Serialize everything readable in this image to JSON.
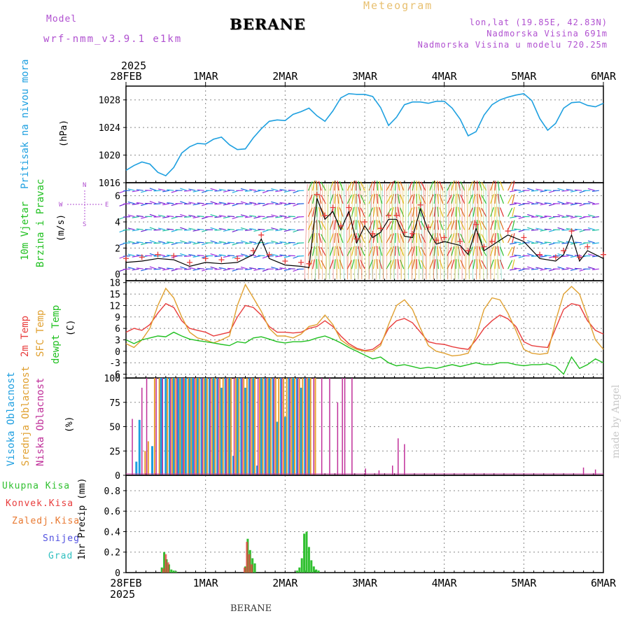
{
  "header": {
    "model_label": "Model",
    "model_name": "wrf-nmm_v3.9.1 e1km",
    "station": "BERANE",
    "product": "Meteogram",
    "coords": "lon,lat (19.85E, 42.83N)",
    "elevation": "Nadmorska Visina 691m",
    "model_elevation": "Nadmorska Visina u modelu 720.25m",
    "footer_station": "BERANE",
    "watermark": "made by Angel"
  },
  "colors": {
    "pressure": "#1ea0e0",
    "temp2m": "#e83c3c",
    "sfc_temp": "#e0a030",
    "dewpt": "#20c020",
    "high_cloud": "#1e9fe0",
    "mid_cloud": "#e8a030",
    "low_cloud": "#c0309a",
    "total_precip": "#30c030",
    "conv_precip": "#e83c3c",
    "frozen_precip": "#e87830",
    "snow": "#5050e0",
    "hail": "#30c0c0",
    "model_text": "#b050d0",
    "meteogram_text": "#e8c070",
    "wind_speed_line": "#000000",
    "gust_marks": "#e83c3c"
  },
  "time_axis": {
    "top_year": "2025",
    "bottom_year": "2025",
    "ticks": [
      "28FEB",
      "1MAR",
      "2MAR",
      "3MAR",
      "4MAR",
      "5MAR",
      "6MAR"
    ]
  },
  "panels": {
    "pressure": {
      "title": "Pritisak na nivou mora",
      "unit": "(hPa)",
      "yticks": [
        "1016",
        "1020",
        "1024",
        "1028"
      ]
    },
    "wind": {
      "title": "10m Vjetar",
      "subtitle": "Brzina i Pravac",
      "unit": "(m/s)",
      "compass_w": "W",
      "compass_e": "E",
      "compass_n": "N",
      "compass_s": "S",
      "yticks": [
        "0",
        "2",
        "4",
        "6"
      ]
    },
    "temp": {
      "label_2m": "2m Temp",
      "label_sfc": "SFC Temp",
      "label_dewpt": "dewpt Temp",
      "unit": "(C)",
      "yticks": [
        "-6",
        "-3",
        "0",
        "3",
        "6",
        "9",
        "12",
        "15",
        "18"
      ]
    },
    "cloud": {
      "label_high": "Visoka Oblacnost",
      "label_mid": "Srednja Oblacnost",
      "label_low": "Niska Oblacnost",
      "unit": "(%)",
      "yticks": [
        "0",
        "25",
        "50",
        "75",
        "100"
      ]
    },
    "precip": {
      "legend": [
        "Ukupna Kisa",
        "Konvek.Kisa",
        "Zaledj.Kisa",
        "Snijeg",
        "Grad"
      ],
      "unit": "1hr Precip (mm)",
      "yticks": [
        "0",
        "0.2",
        "0.4",
        "0.6",
        "0.8"
      ]
    }
  },
  "chart_data": [
    {
      "type": "line",
      "name": "pressure",
      "title": "Pritisak na nivou mora",
      "ylabel": "(hPa)",
      "ylim": [
        1016,
        1030
      ],
      "xlim": [
        0,
        6
      ],
      "x": [
        0,
        0.1,
        0.2,
        0.3,
        0.4,
        0.5,
        0.6,
        0.7,
        0.8,
        0.9,
        1.0,
        1.1,
        1.2,
        1.3,
        1.4,
        1.5,
        1.6,
        1.7,
        1.8,
        1.9,
        2.0,
        2.1,
        2.2,
        2.3,
        2.4,
        2.5,
        2.6,
        2.7,
        2.8,
        2.9,
        3.0,
        3.1,
        3.2,
        3.3,
        3.4,
        3.5,
        3.6,
        3.7,
        3.8,
        3.9,
        4.0,
        4.1,
        4.2,
        4.3,
        4.4,
        4.5,
        4.6,
        4.7,
        4.8,
        4.9,
        5.0,
        5.1,
        5.2,
        5.3,
        5.4,
        5.5,
        5.6,
        5.7,
        5.8,
        5.9,
        6.0
      ],
      "y": [
        1017.8,
        1018.5,
        1019.0,
        1018.7,
        1017.5,
        1017.0,
        1018.2,
        1020.3,
        1021.2,
        1021.7,
        1021.6,
        1022.3,
        1022.6,
        1021.5,
        1020.8,
        1020.9,
        1022.5,
        1023.8,
        1024.9,
        1025.1,
        1025.0,
        1025.9,
        1026.3,
        1026.8,
        1025.7,
        1024.9,
        1026.4,
        1028.3,
        1028.9,
        1028.8,
        1028.8,
        1028.5,
        1026.9,
        1024.3,
        1025.5,
        1027.3,
        1027.7,
        1027.7,
        1027.5,
        1027.8,
        1027.8,
        1026.8,
        1025.2,
        1022.8,
        1023.4,
        1025.8,
        1027.3,
        1028.0,
        1028.4,
        1028.7,
        1028.9,
        1027.9,
        1025.3,
        1023.6,
        1024.6,
        1026.8,
        1027.6,
        1027.7,
        1027.2,
        1027.0,
        1027.5
      ]
    },
    {
      "type": "line",
      "name": "wind_speed",
      "title": "10m Vjetar Brzina i Pravac",
      "ylabel": "(m/s)",
      "ylim": [
        -0.5,
        7.0
      ],
      "xlim": [
        0,
        6
      ],
      "series": [
        {
          "name": "speed",
          "x": [
            0,
            0.2,
            0.4,
            0.6,
            0.8,
            1.0,
            1.2,
            1.4,
            1.6,
            1.7,
            1.8,
            2.0,
            2.2,
            2.3,
            2.4,
            2.5,
            2.6,
            2.7,
            2.8,
            2.9,
            3.0,
            3.1,
            3.2,
            3.3,
            3.4,
            3.5,
            3.6,
            3.7,
            3.8,
            3.9,
            4.0,
            4.2,
            4.3,
            4.4,
            4.5,
            4.6,
            4.8,
            5.0,
            5.2,
            5.4,
            5.5,
            5.6,
            5.7,
            5.8,
            6.0
          ],
          "y": [
            0.9,
            1.0,
            1.2,
            1.1,
            0.6,
            0.9,
            0.8,
            0.9,
            1.5,
            2.7,
            1.2,
            0.7,
            0.6,
            0.5,
            5.8,
            4.2,
            4.8,
            3.4,
            4.8,
            2.4,
            3.7,
            2.8,
            3.2,
            4.2,
            4.2,
            2.9,
            2.8,
            5.0,
            3.3,
            2.3,
            2.5,
            2.2,
            1.5,
            3.5,
            1.8,
            2.2,
            3.0,
            2.5,
            1.2,
            1.0,
            1.5,
            3.0,
            1.0,
            1.8,
            1.2
          ]
        }
      ]
    },
    {
      "type": "line",
      "name": "temperature",
      "ylabel": "(C)",
      "ylim": [
        -7,
        18.5
      ],
      "xlim": [
        0,
        6
      ],
      "series": [
        {
          "name": "2m Temp",
          "x": [
            0,
            0.1,
            0.2,
            0.3,
            0.4,
            0.5,
            0.6,
            0.7,
            0.8,
            0.9,
            1.0,
            1.1,
            1.2,
            1.3,
            1.4,
            1.5,
            1.6,
            1.7,
            1.8,
            1.9,
            2.0,
            2.1,
            2.2,
            2.3,
            2.4,
            2.5,
            2.6,
            2.7,
            2.8,
            2.9,
            3.0,
            3.1,
            3.2,
            3.3,
            3.4,
            3.5,
            3.6,
            3.7,
            3.8,
            3.9,
            4.0,
            4.1,
            4.2,
            4.3,
            4.4,
            4.5,
            4.6,
            4.7,
            4.8,
            4.9,
            5.0,
            5.1,
            5.2,
            5.3,
            5.4,
            5.5,
            5.6,
            5.7,
            5.8,
            5.9,
            6.0
          ],
          "y": [
            5,
            6,
            5.5,
            7,
            10,
            12.5,
            11.5,
            8,
            6,
            5.5,
            5,
            4,
            4.5,
            5,
            9,
            12,
            11.5,
            9.5,
            6.5,
            5,
            5,
            4.8,
            5,
            6,
            6.5,
            8,
            6.5,
            4,
            2,
            0.8,
            0.2,
            0.5,
            2,
            6,
            8,
            8.6,
            7.5,
            5,
            2.5,
            2,
            1.8,
            1.2,
            0.8,
            0.5,
            3,
            6,
            8,
            9.5,
            8.5,
            6.5,
            2.5,
            1.5,
            1.2,
            1,
            6,
            11,
            12.5,
            12,
            8,
            5.5,
            4.5
          ]
        },
        {
          "name": "SFC Temp",
          "x": [
            0,
            0.1,
            0.2,
            0.3,
            0.4,
            0.5,
            0.6,
            0.7,
            0.8,
            0.9,
            1.0,
            1.1,
            1.2,
            1.3,
            1.4,
            1.5,
            1.6,
            1.7,
            1.8,
            1.9,
            2.0,
            2.1,
            2.2,
            2.3,
            2.4,
            2.5,
            2.6,
            2.7,
            2.8,
            2.9,
            3.0,
            3.1,
            3.2,
            3.3,
            3.4,
            3.5,
            3.6,
            3.7,
            3.8,
            3.9,
            4.0,
            4.1,
            4.2,
            4.3,
            4.4,
            4.5,
            4.6,
            4.7,
            4.8,
            4.9,
            5.0,
            5.1,
            5.2,
            5.3,
            5.4,
            5.5,
            5.6,
            5.7,
            5.8,
            5.9,
            6.0
          ],
          "y": [
            2,
            1,
            3,
            6,
            12,
            16.5,
            14,
            9,
            5,
            3.5,
            3,
            2.2,
            3,
            4,
            12,
            17.5,
            14,
            10.5,
            6,
            4,
            4,
            3.5,
            4.5,
            6.5,
            7,
            9.5,
            7,
            3,
            1.5,
            0.5,
            0,
            0,
            1.5,
            7,
            12,
            13.5,
            11,
            6,
            1.5,
            0,
            -0.5,
            -1.2,
            -1,
            -0.5,
            4,
            11,
            14,
            13.5,
            10,
            5.5,
            0.5,
            -0.5,
            -0.8,
            -0.5,
            8,
            15,
            17,
            15,
            9,
            3,
            0.5
          ]
        },
        {
          "name": "dewpt Temp",
          "x": [
            0,
            0.1,
            0.2,
            0.3,
            0.4,
            0.5,
            0.6,
            0.7,
            0.8,
            0.9,
            1.0,
            1.1,
            1.2,
            1.3,
            1.4,
            1.5,
            1.6,
            1.7,
            1.8,
            1.9,
            2.0,
            2.1,
            2.2,
            2.3,
            2.4,
            2.5,
            2.6,
            2.7,
            2.8,
            2.9,
            3.0,
            3.1,
            3.2,
            3.3,
            3.4,
            3.5,
            3.6,
            3.7,
            3.8,
            3.9,
            4.0,
            4.1,
            4.2,
            4.3,
            4.4,
            4.5,
            4.6,
            4.7,
            4.8,
            4.9,
            5.0,
            5.1,
            5.2,
            5.3,
            5.4,
            5.5,
            5.6,
            5.7,
            5.8,
            5.9,
            6.0
          ],
          "y": [
            3,
            2,
            3,
            3.5,
            4,
            3.8,
            5,
            4,
            3.2,
            2.8,
            2.5,
            2.2,
            1.8,
            1.5,
            2.5,
            2.2,
            3.5,
            3.8,
            3.2,
            2.5,
            2.2,
            2.5,
            2.5,
            2.8,
            3.5,
            4,
            3.2,
            2.2,
            1,
            0,
            -1,
            -2,
            -1.5,
            -3,
            -3.8,
            -3.5,
            -4,
            -4.5,
            -4.2,
            -4.5,
            -4,
            -3.5,
            -4,
            -3.5,
            -3,
            -3.5,
            -3.5,
            -3,
            -3,
            -3.5,
            -3.8,
            -3.5,
            -3.5,
            -3.3,
            -4,
            -6,
            -1.5,
            -4.5,
            -3.5,
            -2,
            -3
          ]
        }
      ]
    },
    {
      "type": "bar",
      "name": "cloud_cover",
      "ylabel": "(%)",
      "ylim": [
        0,
        100
      ],
      "xlim": [
        0,
        6
      ],
      "series": [
        {
          "name": "Visoka Oblacnost",
          "x": [
            0.13,
            0.17,
            0.33,
            0.44,
            0.5,
            0.55,
            0.6,
            0.66,
            0.7,
            0.75,
            0.8,
            0.84,
            0.9,
            0.95,
            1.0,
            1.05,
            1.1,
            1.15,
            1.2,
            1.25,
            1.3,
            1.35,
            1.4,
            1.45,
            1.5,
            1.55,
            1.6,
            1.65,
            1.7,
            1.75,
            1.8,
            1.85,
            1.9,
            1.95,
            2.0,
            2.05,
            2.1,
            2.15,
            2.2,
            2.25,
            2.3
          ],
          "values": [
            14,
            57,
            30,
            100,
            100,
            100,
            100,
            100,
            100,
            100,
            100,
            100,
            100,
            100,
            100,
            100,
            100,
            100,
            90,
            100,
            100,
            20,
            100,
            100,
            90,
            100,
            100,
            10,
            100,
            100,
            100,
            100,
            55,
            100,
            60,
            100,
            100,
            100,
            90,
            100,
            100
          ]
        },
        {
          "name": "Srednja Oblacnost",
          "x": [
            0.24,
            0.28,
            0.36,
            0.42,
            0.52,
            0.58,
            0.62,
            0.68,
            0.73,
            0.78,
            0.82,
            0.88,
            0.92,
            0.98,
            1.02,
            1.08,
            1.12,
            1.18,
            1.22,
            1.28,
            1.32,
            1.38,
            1.42,
            1.48,
            1.52,
            1.58,
            1.62,
            1.68,
            1.72,
            1.78,
            1.82,
            1.88,
            1.92,
            1.98,
            2.02,
            2.08,
            2.12,
            2.18,
            2.22,
            2.28,
            2.32,
            2.38
          ],
          "values": [
            25,
            35,
            100,
            100,
            100,
            100,
            100,
            100,
            100,
            100,
            100,
            100,
            100,
            100,
            100,
            100,
            100,
            100,
            100,
            100,
            100,
            100,
            100,
            100,
            100,
            100,
            100,
            100,
            100,
            100,
            100,
            100,
            100,
            100,
            100,
            100,
            100,
            100,
            100,
            100,
            100,
            100
          ]
        },
        {
          "name": "Niska Oblacnost",
          "x": [
            0.08,
            0.2,
            0.26,
            0.38,
            0.46,
            0.56,
            0.64,
            0.72,
            0.86,
            0.96,
            1.06,
            1.16,
            1.26,
            1.36,
            1.46,
            1.56,
            1.66,
            1.76,
            1.86,
            1.96,
            2.06,
            2.16,
            2.26,
            2.36,
            2.46,
            2.56,
            2.66,
            2.72,
            2.75,
            2.84,
            3.01,
            3.18,
            3.35,
            3.42,
            3.5,
            5.75,
            5.9
          ],
          "values": [
            58,
            90,
            100,
            100,
            100,
            100,
            100,
            100,
            100,
            100,
            100,
            100,
            100,
            100,
            100,
            100,
            100,
            100,
            100,
            100,
            100,
            100,
            100,
            100,
            100,
            100,
            75,
            100,
            100,
            100,
            7,
            5,
            10,
            38,
            32,
            8,
            6
          ]
        }
      ]
    },
    {
      "type": "bar",
      "name": "precipitation",
      "ylabel": "1hr Precip (mm)",
      "ylim": [
        0,
        0.95
      ],
      "xlim": [
        0,
        6
      ],
      "series": [
        {
          "name": "Ukupna Kisa",
          "x": [
            0.45,
            0.48,
            0.51,
            0.54,
            0.57,
            0.6,
            0.63,
            1.5,
            1.53,
            1.56,
            1.59,
            1.62,
            2.15,
            2.18,
            2.21,
            2.24,
            2.27,
            2.3,
            2.33,
            2.36,
            2.39,
            2.42
          ],
          "values": [
            0.05,
            0.2,
            0.13,
            0.08,
            0.03,
            0.02,
            0.01,
            0.06,
            0.33,
            0.22,
            0.14,
            0.09,
            0.02,
            0.05,
            0.14,
            0.38,
            0.4,
            0.25,
            0.12,
            0.06,
            0.03,
            0.02
          ]
        },
        {
          "name": "Konvek.Kisa",
          "x": [
            0.47,
            0.5,
            0.53,
            1.49,
            1.52,
            1.55,
            1.58
          ],
          "values": [
            0.04,
            0.18,
            0.1,
            0.05,
            0.3,
            0.18,
            0.08
          ]
        }
      ]
    }
  ]
}
